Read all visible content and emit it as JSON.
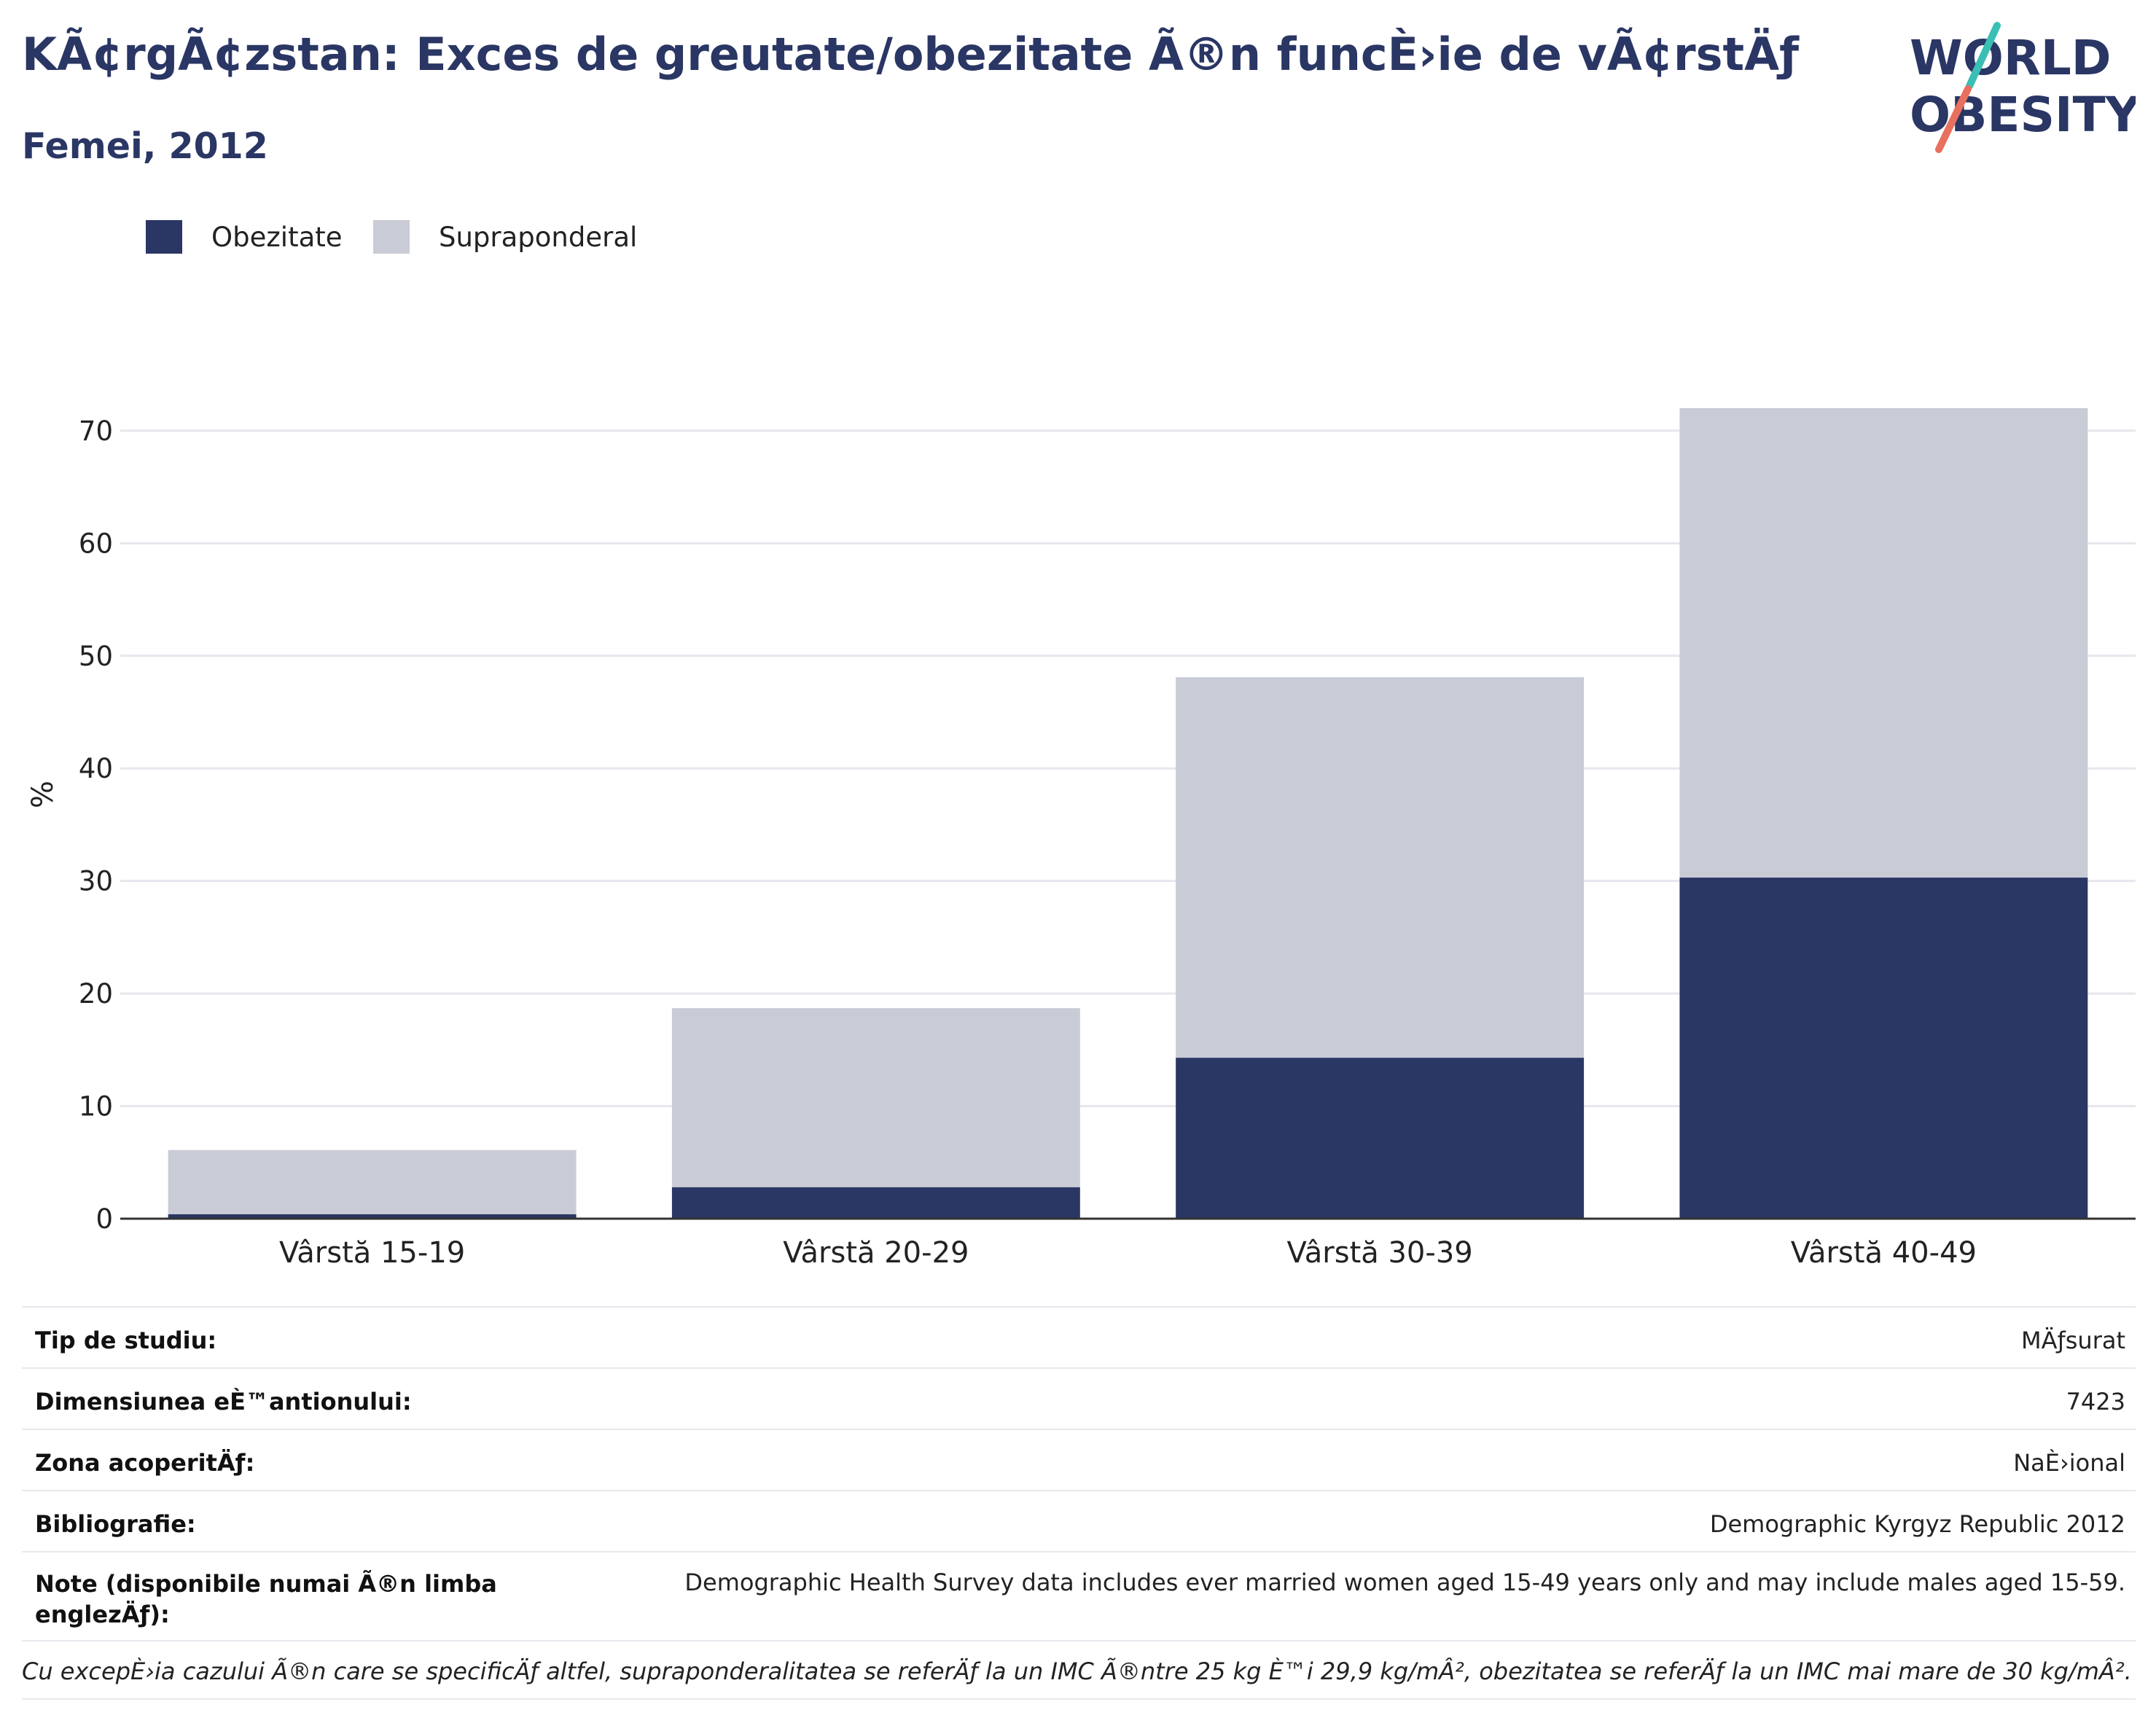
{
  "title": "KÃ¢rgÃ¢zstan: Exces de greutate/obezitate Ã®n funcÈ›ie de vÃ¢rstÄƒ",
  "subtitle": "Femei, 2012",
  "logo": {
    "line1": "WORLD",
    "line2": "OBESITY",
    "text_color": "#2a3664",
    "accent_teal": "#3bbfb4",
    "accent_coral": "#e8705e"
  },
  "colors": {
    "obese": "#2a3664",
    "overweight": "#c9cbd6",
    "axis": "#333333",
    "grid": "#e6e6ee"
  },
  "chart_data": {
    "type": "bar",
    "stacked": true,
    "categories": [
      "Vârstă 15-19",
      "Vârstă 20-29",
      "Vârstă 30-39",
      "Vârstă 40-49"
    ],
    "series": [
      {
        "name": "Obezitate",
        "values": [
          0.4,
          2.8,
          14.3,
          30.3
        ]
      },
      {
        "name": "Supraponderal",
        "values": [
          5.7,
          15.9,
          33.8,
          41.7
        ]
      }
    ],
    "ylabel": "%",
    "ylim": [
      0,
      72
    ],
    "yticks": [
      0,
      10,
      20,
      30,
      40,
      50,
      60,
      70
    ],
    "grid": true,
    "legend": "top-left"
  },
  "meta": [
    {
      "key": "Tip de studiu:",
      "value": "MÄƒsurat"
    },
    {
      "key": "Dimensiunea eÈ™antionului:",
      "value": "7423"
    },
    {
      "key": "Zona acoperitÄƒ:",
      "value": "NaÈ›ional"
    },
    {
      "key": "Bibliografie:",
      "value": "Demographic Kyrgyz Republic 2012"
    },
    {
      "key": "Note (disponibile numai Ã®n limba englezÄƒ):",
      "value": "Demographic Health Survey data includes ever married women aged 15-49 years only and may include males aged 15-59."
    }
  ],
  "footnote": "Cu excepÈ›ia cazului Ã®n care se specificÄƒ altfel, supraponderalitatea se referÄƒ la un IMC Ã®ntre 25 kg È™i 29,9 kg/mÂ², obezitatea se referÄƒ la un IMC mai mare de 30 kg/mÂ²."
}
